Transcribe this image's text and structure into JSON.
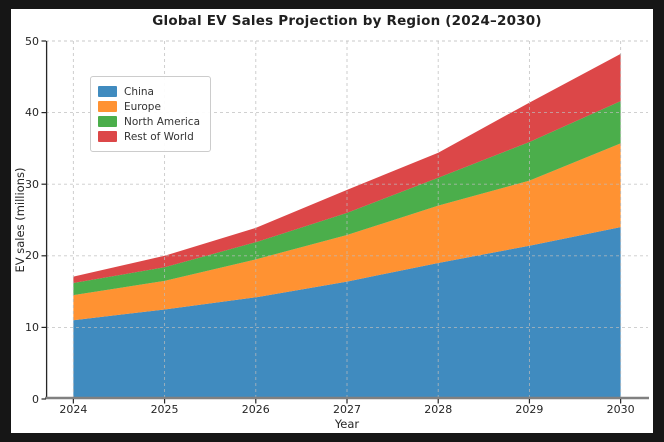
{
  "colors": {
    "frame_background": "#161616",
    "figure_background": "#ffffff",
    "grid": "#bbbbbb",
    "axis_text": "#262626",
    "left_spine": "#262626",
    "bottom_spine": "#808080"
  },
  "chart_data": {
    "type": "area",
    "stacked": true,
    "title": "Global EV Sales Projection by Region (2024–2030)",
    "xlabel": "Year",
    "ylabel": "EV sales (millions)",
    "x": [
      2024,
      2025,
      2026,
      2027,
      2028,
      2029,
      2030
    ],
    "xlim": [
      2023.7,
      2030.3
    ],
    "ylim": [
      0,
      50
    ],
    "xticks": [
      "2024",
      "2025",
      "2026",
      "2027",
      "2028",
      "2029",
      "2030"
    ],
    "yticks": [
      0,
      10,
      20,
      30,
      40,
      50
    ],
    "grid": "dashed",
    "grid_above_data": true,
    "legend_position": "upper-left",
    "area_alpha": 0.85,
    "series": [
      {
        "name": "China",
        "color": "#1f77b4",
        "values": [
          11.0,
          12.5,
          14.2,
          16.4,
          19.0,
          21.4,
          24.0
        ]
      },
      {
        "name": "Europe",
        "color": "#ff7f0e",
        "values": [
          3.5,
          4.0,
          5.3,
          6.5,
          8.0,
          9.1,
          11.7
        ]
      },
      {
        "name": "North America",
        "color": "#2ca02c",
        "values": [
          1.7,
          1.9,
          2.4,
          3.1,
          3.9,
          5.4,
          5.9
        ]
      },
      {
        "name": "Rest of World",
        "color": "#d62728",
        "values": [
          0.9,
          1.6,
          2.0,
          3.2,
          3.5,
          5.5,
          6.6
        ]
      }
    ]
  }
}
